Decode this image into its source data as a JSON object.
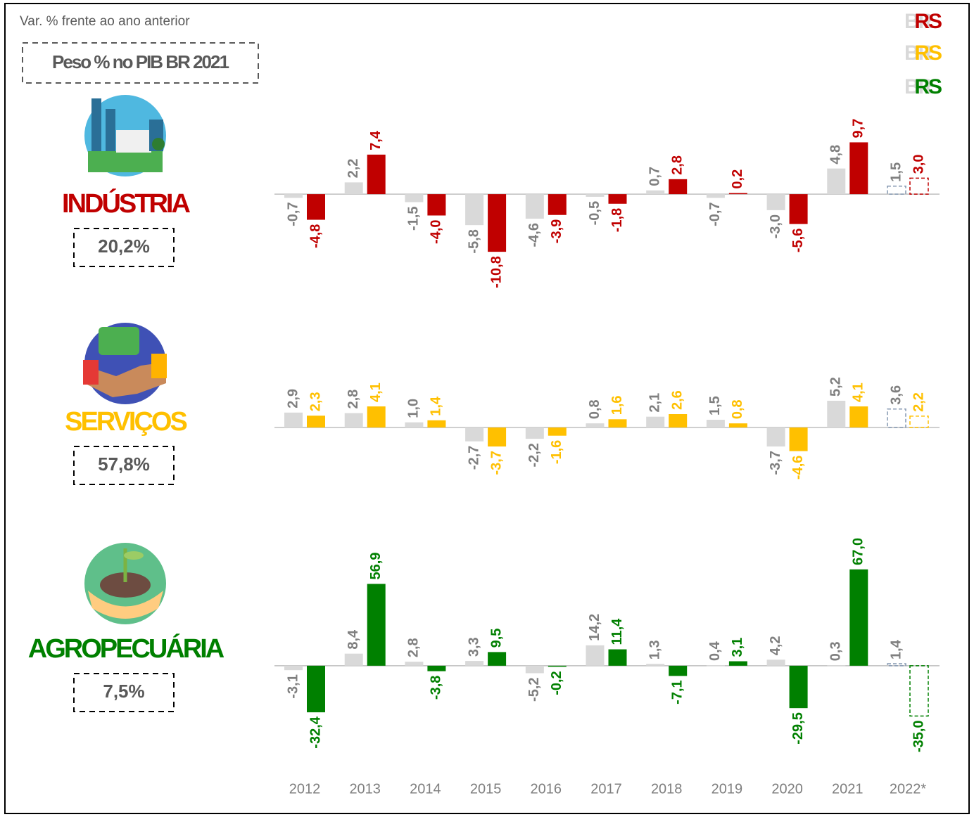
{
  "header": {
    "note": "Var. % frente ao ano anterior",
    "weight_title": "Peso % no PIB BR 2021"
  },
  "chart_data": [
    {
      "type": "bar",
      "title": "INDÚSTRIA",
      "subtitle": "20,2%",
      "ylim": [
        -20,
        17
      ],
      "series": [
        {
          "name": "BR",
          "color": "#d9d9d9",
          "values": [
            -0.7,
            2.2,
            -1.5,
            -5.8,
            -4.6,
            -0.5,
            0.7,
            -0.7,
            -3.0,
            4.8,
            1.5
          ],
          "value_labels": [
            "-0,7",
            "2,2",
            "-1,5",
            "-5,8",
            "-4,6",
            "-0,5",
            "0,7",
            "-0,7",
            "-3,0",
            "4,8",
            "1,5"
          ]
        },
        {
          "name": "RS",
          "color": "#c00000",
          "values": [
            -4.8,
            7.4,
            -4.0,
            -10.8,
            -3.9,
            -1.8,
            2.8,
            0.2,
            -5.6,
            9.7,
            3.0
          ],
          "value_labels": [
            "-4,8",
            "7,4",
            "-4,0",
            "-10,8",
            "-3,9",
            "-1,8",
            "2,8",
            "0,2",
            "-5,6",
            "9,7",
            "3,0"
          ]
        }
      ]
    },
    {
      "type": "bar",
      "title": "SERVIÇOS",
      "subtitle": "57,8%",
      "ylim": [
        -13,
        13
      ],
      "series": [
        {
          "name": "BR",
          "color": "#d9d9d9",
          "values": [
            2.9,
            2.8,
            1.0,
            -2.7,
            -2.2,
            0.8,
            2.1,
            1.5,
            -3.7,
            5.2,
            3.6
          ],
          "value_labels": [
            "2,9",
            "2,8",
            "1,0",
            "-2,7",
            "-2,2",
            "0,8",
            "2,1",
            "1,5",
            "-3,7",
            "5,2",
            "3,6"
          ]
        },
        {
          "name": "RS",
          "color": "#ffc000",
          "values": [
            2.3,
            4.1,
            1.4,
            -3.7,
            -1.6,
            1.6,
            2.6,
            0.8,
            -4.6,
            4.1,
            2.2
          ],
          "value_labels": [
            "2,3",
            "4,1",
            "1,4",
            "-3,7",
            "-1,6",
            "1,6",
            "2,6",
            "0,8",
            "-4,6",
            "4,1",
            "2,2"
          ]
        }
      ]
    },
    {
      "type": "bar",
      "title": "AGROPECUÁRIA",
      "subtitle": "7,5%",
      "ylim": [
        -70,
        85
      ],
      "categories": [
        "2012",
        "2013",
        "2014",
        "2015",
        "2016",
        "2017",
        "2018",
        "2019",
        "2020",
        "2021",
        "2022*"
      ],
      "series": [
        {
          "name": "BR",
          "color": "#d9d9d9",
          "values": [
            -3.1,
            8.4,
            2.8,
            3.3,
            -5.2,
            14.2,
            1.3,
            0.4,
            4.2,
            0.3,
            1.4
          ],
          "value_labels": [
            "-3,1",
            "8,4",
            "2,8",
            "3,3",
            "-5,2",
            "14,2",
            "1,3",
            "0,4",
            "4,2",
            "0,3",
            "1,4"
          ]
        },
        {
          "name": "RS",
          "color": "#008000",
          "values": [
            -32.4,
            56.9,
            -3.8,
            9.5,
            -0.2,
            11.4,
            -7.1,
            3.1,
            -29.5,
            67.0,
            -35.0
          ],
          "value_labels": [
            "-32,4",
            "56,9",
            "-3,8",
            "9,5",
            "-0,2",
            "11,4",
            "-7,1",
            "3,1",
            "-29,5",
            "67,0",
            "-35,0"
          ]
        }
      ]
    }
  ]
}
